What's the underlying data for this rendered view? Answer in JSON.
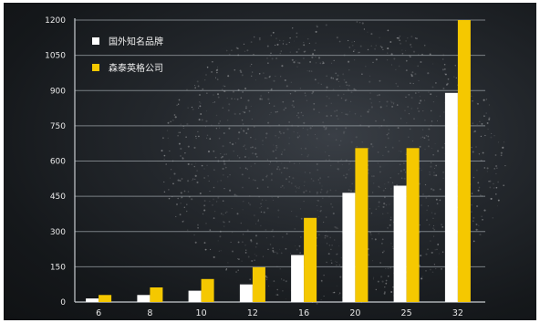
{
  "chart_data": {
    "type": "bar",
    "categories": [
      "6",
      "8",
      "10",
      "12",
      "16",
      "20",
      "25",
      "32"
    ],
    "series": [
      {
        "name": "国外知名品牌",
        "color": "#ffffff",
        "values": [
          15,
          30,
          48,
          75,
          200,
          465,
          495,
          890
        ]
      },
      {
        "name": "森泰英格公司",
        "color": "#f5c800",
        "values": [
          30,
          62,
          98,
          148,
          358,
          655,
          655,
          1200
        ]
      }
    ],
    "yticks": [
      0,
      150,
      300,
      450,
      600,
      750,
      900,
      1050,
      1200
    ],
    "ylim": [
      0,
      1200
    ],
    "grid": true,
    "legend": "top-left",
    "title": "",
    "xlabel": "",
    "ylabel": ""
  }
}
